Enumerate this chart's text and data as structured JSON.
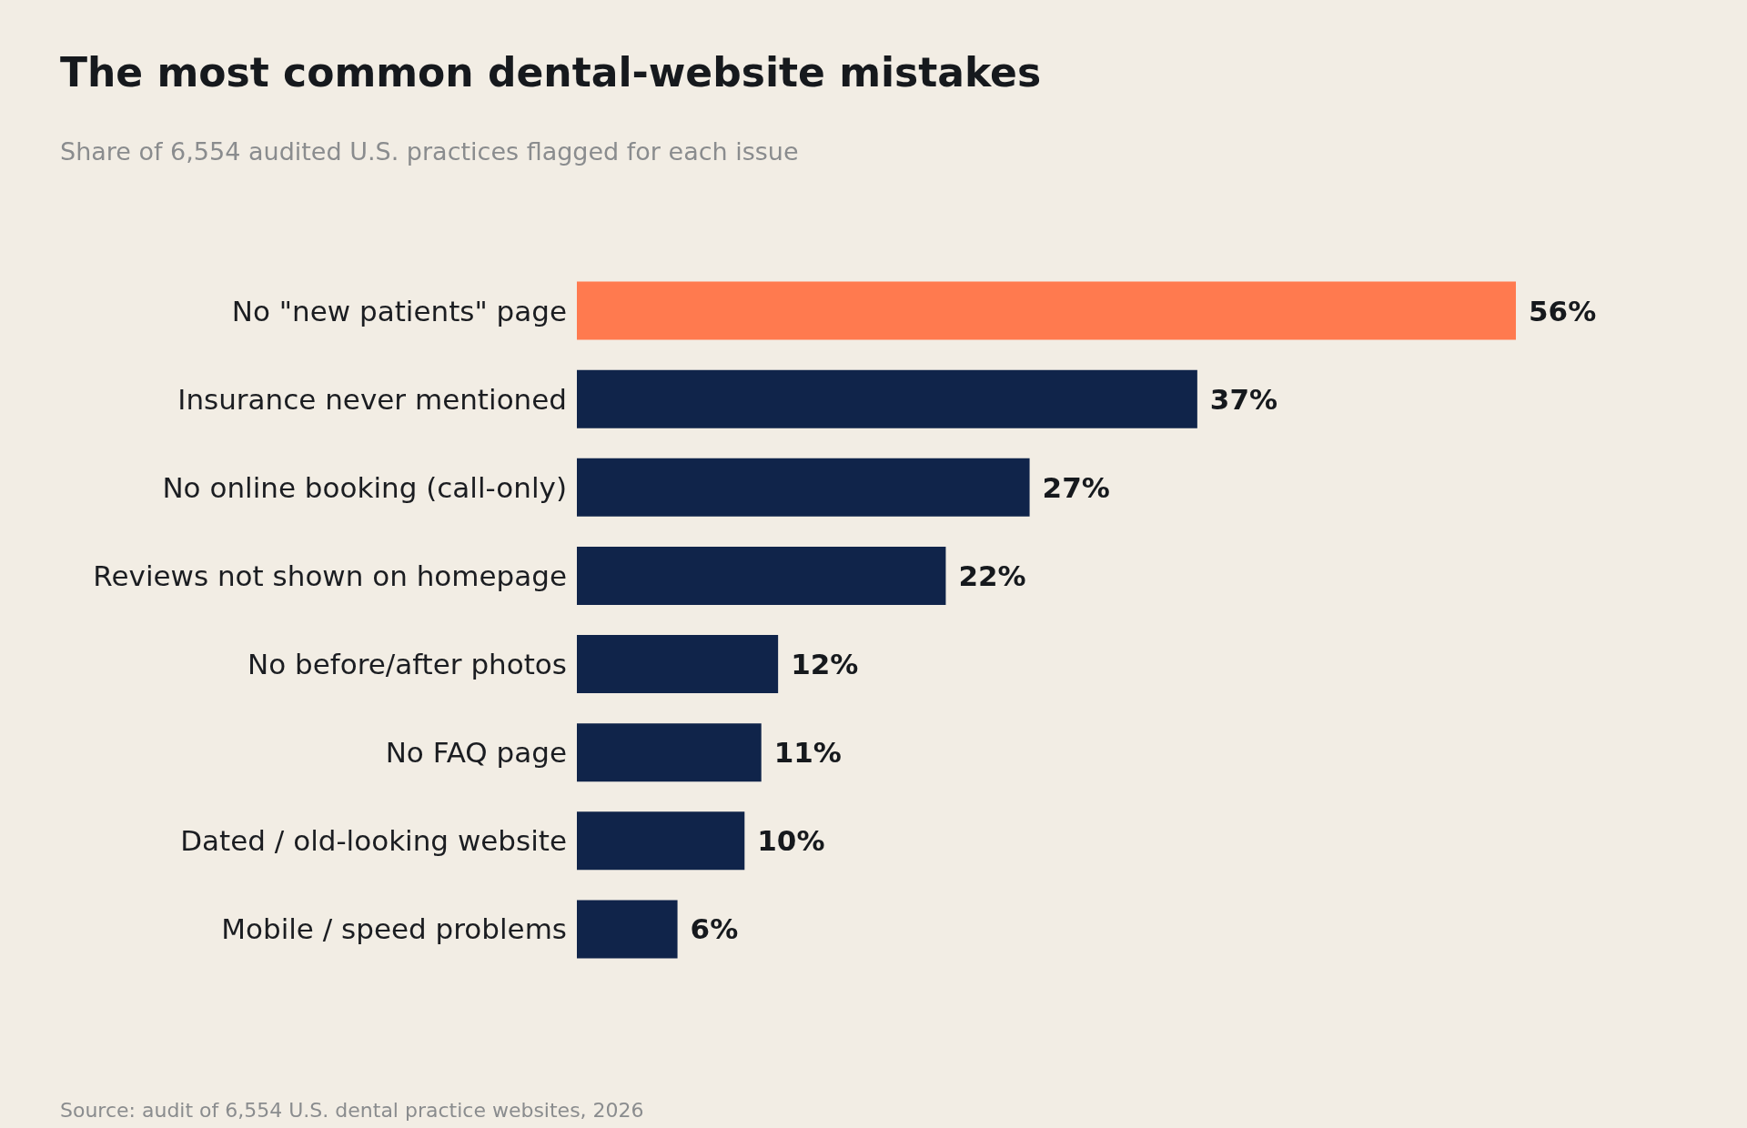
{
  "chart_data": {
    "type": "bar",
    "orientation": "horizontal",
    "title": "The most common dental-website mistakes",
    "subtitle": "Share of 6,554 audited U.S. practices flagged for each issue",
    "categories": [
      "No \"new patients\" page",
      "Insurance never mentioned",
      "No online booking (call-only)",
      "Reviews not shown on homepage",
      "No before/after photos",
      "No FAQ page",
      "Dated / old-looking website",
      "Mobile / speed problems"
    ],
    "values": [
      56,
      37,
      27,
      22,
      12,
      11,
      10,
      6
    ],
    "colors": [
      "#ff7a4f",
      "#10244a",
      "#10244a",
      "#10244a",
      "#10244a",
      "#10244a",
      "#10244a",
      "#10244a"
    ],
    "value_labels": [
      "56%",
      "37%",
      "27%",
      "22%",
      "12%",
      "11%",
      "10%",
      "6%"
    ],
    "annotations": [
      "Source: audit of 6,554 U.S. dental practice websites, 2026"
    ]
  }
}
